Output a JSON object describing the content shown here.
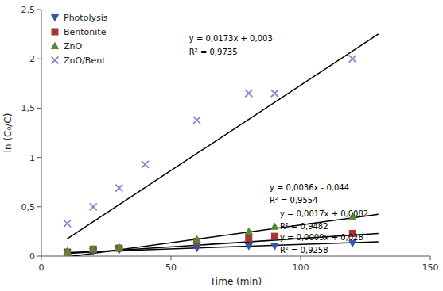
{
  "chart_data": {
    "type": "scatter",
    "title": "",
    "xlabel": "Time (min)",
    "ylabel": "ln (C₀/C)",
    "xlim": [
      0,
      150
    ],
    "ylim": [
      0,
      2.5
    ],
    "xticks": [
      0,
      50,
      100,
      150
    ],
    "yticks": [
      0,
      {
        "value": 0.5,
        "label": "0,5"
      },
      1,
      {
        "value": 1.5,
        "label": "1,5"
      },
      2,
      {
        "value": 2.5,
        "label": "2,5"
      }
    ],
    "grid": false,
    "legend": "upper left",
    "series": [
      {
        "name": "Photolysis",
        "marker": "triangle-down",
        "color": "#3355AA",
        "x": [
          10,
          20,
          30,
          60,
          80,
          90,
          120
        ],
        "values": [
          0.04,
          0.05,
          0.06,
          0.08,
          0.1,
          0.1,
          0.13
        ],
        "fit_color": "#000000",
        "fit_x": [
          10,
          130
        ],
        "fit_values": [
          0.037,
          0.145
        ]
      },
      {
        "name": "Bentonite",
        "marker": "square",
        "color": "#AA3333",
        "x": [
          10,
          20,
          30,
          60,
          80,
          90,
          120
        ],
        "values": [
          0.04,
          0.07,
          0.08,
          0.15,
          0.18,
          0.2,
          0.23
        ],
        "fit_color": "#000000",
        "fit_x": [
          10,
          130
        ],
        "fit_values": [
          0.0252,
          0.2292
        ]
      },
      {
        "name": "ZnO",
        "marker": "triangle-up",
        "color": "#558833",
        "x": [
          10,
          20,
          30,
          60,
          80,
          90,
          120
        ],
        "values": [
          0.05,
          0.07,
          0.09,
          0.17,
          0.25,
          0.3,
          0.4
        ],
        "fit_color": "#000000",
        "fit_x": [
          10,
          130
        ],
        "fit_values": [
          -0.008,
          0.424
        ]
      },
      {
        "name": "ZnO/Bent",
        "marker": "x",
        "color": "#8888CC",
        "x": [
          10,
          20,
          30,
          40,
          60,
          80,
          90,
          120
        ],
        "values": [
          0.33,
          0.5,
          0.69,
          0.93,
          1.38,
          1.65,
          1.65,
          2.0
        ],
        "fit_color": "#000000",
        "fit_x": [
          10,
          130
        ],
        "fit_values": [
          0.176,
          2.252
        ]
      }
    ],
    "annotations": [
      {
        "text": "y = 0,0173x + 0,003",
        "x": 57,
        "y": 2.18
      },
      {
        "text": "R² = 0,9735",
        "x": 57,
        "y": 2.04
      },
      {
        "text": "y = 0,0036x - 0,044",
        "x": 88,
        "y": 0.67
      },
      {
        "text": "R² = 0,9554",
        "x": 88,
        "y": 0.54
      },
      {
        "text": "y = 0,0017x + 0,0082",
        "x": 92,
        "y": 0.4
      },
      {
        "text": "R² = 0,9482",
        "x": 92,
        "y": 0.27
      },
      {
        "text": "y = 0,0009x + 0,028",
        "x": 92,
        "y": 0.16
      },
      {
        "text": "R² = 0,9258",
        "x": 92,
        "y": 0.03
      }
    ]
  }
}
